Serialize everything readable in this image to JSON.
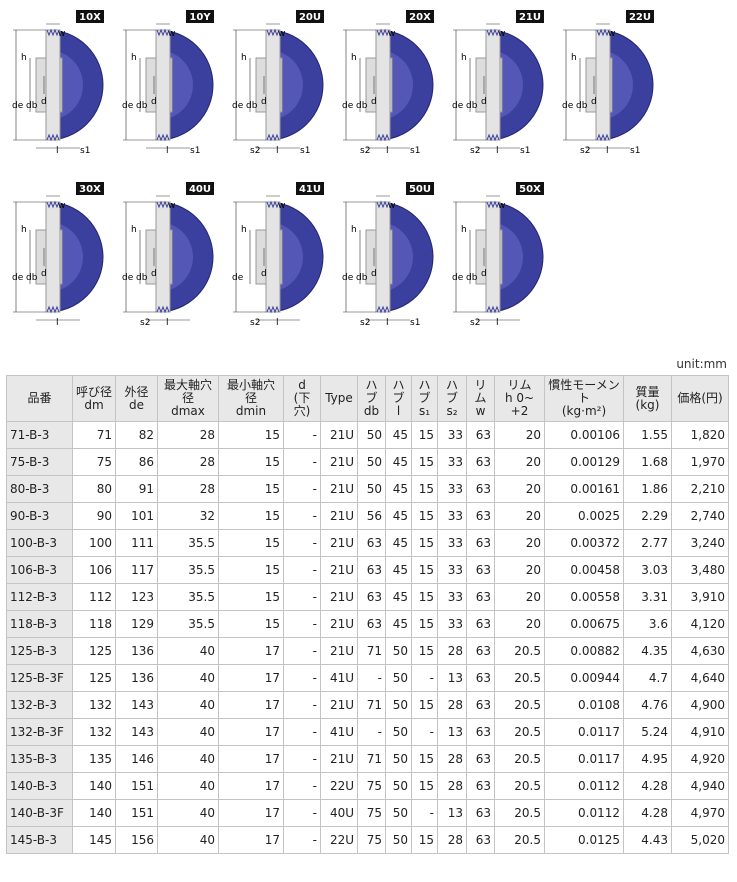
{
  "diagrams": [
    {
      "code": "10X",
      "dims": [
        "w",
        "h",
        "de",
        "db",
        "d",
        "l",
        "s1"
      ]
    },
    {
      "code": "10Y",
      "dims": [
        "w",
        "h",
        "de",
        "db",
        "d",
        "l",
        "s1"
      ]
    },
    {
      "code": "20U",
      "dims": [
        "w",
        "h",
        "de",
        "db",
        "d",
        "s2",
        "l",
        "s1"
      ]
    },
    {
      "code": "20X",
      "dims": [
        "w",
        "h",
        "de",
        "db",
        "d",
        "s2",
        "l",
        "s1"
      ]
    },
    {
      "code": "21U",
      "dims": [
        "w",
        "h",
        "de",
        "db",
        "d",
        "s2",
        "l",
        "s1"
      ]
    },
    {
      "code": "22U",
      "dims": [
        "w",
        "h",
        "de",
        "db",
        "d",
        "s2",
        "l",
        "s1"
      ]
    },
    {
      "code": "30X",
      "dims": [
        "w",
        "h",
        "de",
        "db",
        "d",
        "l"
      ]
    },
    {
      "code": "40U",
      "dims": [
        "w",
        "h",
        "de",
        "db",
        "d",
        "l",
        "s2"
      ]
    },
    {
      "code": "41U",
      "dims": [
        "w",
        "h",
        "de",
        "d",
        "l",
        "s2"
      ]
    },
    {
      "code": "50U",
      "dims": [
        "w",
        "h",
        "de",
        "db",
        "d",
        "s2",
        "l",
        "s1"
      ]
    },
    {
      "code": "50X",
      "dims": [
        "w",
        "h",
        "de",
        "db",
        "d",
        "l",
        "s2"
      ]
    }
  ],
  "unit": "unit:mm",
  "table": {
    "header": [
      "品番",
      "呼び径\ndm",
      "外径\nde",
      "最大軸穴\n径\ndmax",
      "最小軸穴\n径\ndmin",
      "d\n(下\n穴)",
      "Type",
      "ハブ\ndb",
      "ハブ\nl",
      "ハブ\ns₁",
      "ハブ\ns₂",
      "リム\nw",
      "リム\nh 0~\n+2",
      "慣性モーメン\nト\n(kg·m²)",
      "質量\n(kg)",
      "価格(円)"
    ],
    "rows": [
      [
        "71-B-3",
        "71",
        "82",
        "28",
        "15",
        "-",
        "21U",
        "50",
        "45",
        "15",
        "33",
        "63",
        "20",
        "0.00106",
        "1.55",
        "1,820"
      ],
      [
        "75-B-3",
        "75",
        "86",
        "28",
        "15",
        "-",
        "21U",
        "50",
        "45",
        "15",
        "33",
        "63",
        "20",
        "0.00129",
        "1.68",
        "1,970"
      ],
      [
        "80-B-3",
        "80",
        "91",
        "28",
        "15",
        "-",
        "21U",
        "50",
        "45",
        "15",
        "33",
        "63",
        "20",
        "0.00161",
        "1.86",
        "2,210"
      ],
      [
        "90-B-3",
        "90",
        "101",
        "32",
        "15",
        "-",
        "21U",
        "56",
        "45",
        "15",
        "33",
        "63",
        "20",
        "0.0025",
        "2.29",
        "2,740"
      ],
      [
        "100-B-3",
        "100",
        "111",
        "35.5",
        "15",
        "-",
        "21U",
        "63",
        "45",
        "15",
        "33",
        "63",
        "20",
        "0.00372",
        "2.77",
        "3,240"
      ],
      [
        "106-B-3",
        "106",
        "117",
        "35.5",
        "15",
        "-",
        "21U",
        "63",
        "45",
        "15",
        "33",
        "63",
        "20",
        "0.00458",
        "3.03",
        "3,480"
      ],
      [
        "112-B-3",
        "112",
        "123",
        "35.5",
        "15",
        "-",
        "21U",
        "63",
        "45",
        "15",
        "33",
        "63",
        "20",
        "0.00558",
        "3.31",
        "3,910"
      ],
      [
        "118-B-3",
        "118",
        "129",
        "35.5",
        "15",
        "-",
        "21U",
        "63",
        "45",
        "15",
        "33",
        "63",
        "20",
        "0.00675",
        "3.6",
        "4,120"
      ],
      [
        "125-B-3",
        "125",
        "136",
        "40",
        "17",
        "-",
        "21U",
        "71",
        "50",
        "15",
        "28",
        "63",
        "20.5",
        "0.00882",
        "4.35",
        "4,630"
      ],
      [
        "125-B-3F",
        "125",
        "136",
        "40",
        "17",
        "-",
        "41U",
        "-",
        "50",
        "-",
        "13",
        "63",
        "20.5",
        "0.00944",
        "4.7",
        "4,640"
      ],
      [
        "132-B-3",
        "132",
        "143",
        "40",
        "17",
        "-",
        "21U",
        "71",
        "50",
        "15",
        "28",
        "63",
        "20.5",
        "0.0108",
        "4.76",
        "4,900"
      ],
      [
        "132-B-3F",
        "132",
        "143",
        "40",
        "17",
        "-",
        "41U",
        "-",
        "50",
        "-",
        "13",
        "63",
        "20.5",
        "0.0117",
        "5.24",
        "4,910"
      ],
      [
        "135-B-3",
        "135",
        "146",
        "40",
        "17",
        "-",
        "21U",
        "71",
        "50",
        "15",
        "28",
        "63",
        "20.5",
        "0.0117",
        "4.95",
        "4,920"
      ],
      [
        "140-B-3",
        "140",
        "151",
        "40",
        "17",
        "-",
        "22U",
        "75",
        "50",
        "15",
        "28",
        "63",
        "20.5",
        "0.0112",
        "4.28",
        "4,940"
      ],
      [
        "140-B-3F",
        "140",
        "151",
        "40",
        "17",
        "-",
        "40U",
        "75",
        "50",
        "-",
        "13",
        "63",
        "20.5",
        "0.0112",
        "4.28",
        "4,970"
      ],
      [
        "145-B-3",
        "145",
        "156",
        "40",
        "17",
        "-",
        "22U",
        "75",
        "50",
        "15",
        "28",
        "63",
        "20.5",
        "0.0125",
        "4.43",
        "5,020"
      ]
    ]
  }
}
